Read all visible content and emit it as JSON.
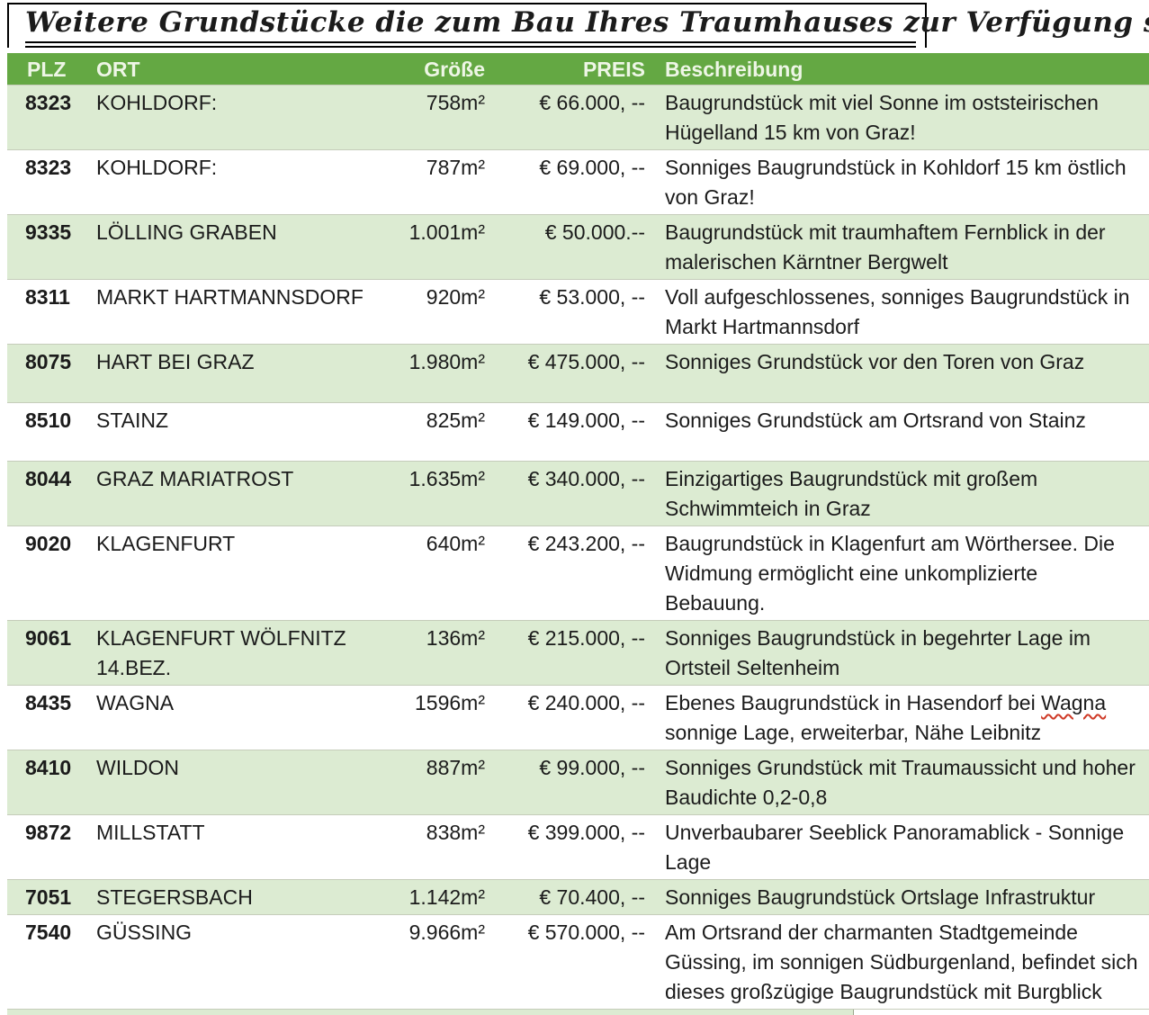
{
  "title": "Weitere Grundstücke die zum Bau Ihres Traumhauses zur Verfügung stehen",
  "colors": {
    "header_bg": "#64a843",
    "row_alt_bg": "#dcebd2",
    "header_text": "#eef6e6",
    "spellcheck_underline": "#cf3a27",
    "title_text": "#000000"
  },
  "table": {
    "headers": [
      "PLZ",
      "ORT",
      "Größe",
      "PREIS",
      "Beschreibung"
    ],
    "rows": [
      {
        "plz": "8323",
        "ort": "KOHLDORF:",
        "groesse": "758m²",
        "preis": "€ 66.000, --",
        "beschreibung": "Baugrundstück mit viel Sonne im oststeirischen Hügelland 15 km von Graz!"
      },
      {
        "plz": "8323",
        "ort": "KOHLDORF:",
        "groesse": "787m²",
        "preis": "€ 69.000, --",
        "beschreibung": "Sonniges Baugrundstück in Kohldorf 15 km östlich von Graz!"
      },
      {
        "plz": "9335",
        "ort": "LÖLLING GRABEN",
        "groesse": "1.001m²",
        "preis": "€ 50.000.--",
        "beschreibung": "Baugrundstück mit traumhaftem Fernblick in der malerischen Kärntner Bergwelt"
      },
      {
        "plz": "8311",
        "ort": "MARKT HARTMANNSDORF",
        "groesse": "920m²",
        "preis": "€ 53.000, --",
        "beschreibung": "Voll aufgeschlossenes, sonniges Baugrundstück in Markt Hartmannsdorf"
      },
      {
        "plz": "8075",
        "ort": "HART BEI GRAZ",
        "groesse": "1.980m²",
        "preis": "€ 475.000, --",
        "beschreibung": "Sonniges Grundstück vor den Toren von Graz"
      },
      {
        "plz": "8510",
        "ort": "STAINZ",
        "groesse": "825m²",
        "preis": "€ 149.000, --",
        "beschreibung": "Sonniges Grundstück am Ortsrand von Stainz"
      },
      {
        "plz": "8044",
        "ort": "GRAZ MARIATROST",
        "groesse": "1.635m²",
        "preis": "€ 340.000, --",
        "beschreibung": "Einzigartiges Baugrundstück mit großem Schwimmteich in Graz"
      },
      {
        "plz": "9020",
        "ort": "KLAGENFURT",
        "groesse": "640m²",
        "preis": "€ 243.200, --",
        "beschreibung": "Baugrundstück in Klagenfurt am Wörthersee. Die Widmung ermöglicht eine unkomplizierte Bebauung."
      },
      {
        "plz": "9061",
        "ort": "KLAGENFURT WÖLFNITZ 14.BEZ.",
        "groesse": "136m²",
        "preis": "€ 215.000, --",
        "beschreibung": "Sonniges Baugrundstück in begehrter Lage im Ortsteil Seltenheim"
      },
      {
        "plz": "8435",
        "ort": "WAGNA",
        "groesse": "1596m²",
        "preis": "€ 240.000, --",
        "beschreibung": "Ebenes Baugrundstück in Hasendorf bei Wagna sonnige Lage, erweiterbar, Nähe Leibnitz",
        "spellcheck_word": "Wagna"
      },
      {
        "plz": "8410",
        "ort": "WILDON",
        "groesse": "887m²",
        "preis": "€ 99.000, --",
        "beschreibung": "Sonniges Grundstück mit Traumaussicht und hoher Baudichte 0,2-0,8"
      },
      {
        "plz": "9872",
        "ort": "MILLSTATT",
        "groesse": "838m²",
        "preis": "€ 399.000, --",
        "beschreibung": "Unverbaubarer Seeblick Panoramablick - Sonnige Lage"
      },
      {
        "plz": "7051",
        "ort": "STEGERSBACH",
        "groesse": "1.142m²",
        "preis": "€ 70.400, --",
        "beschreibung": "Sonniges Baugrundstück Ortslage Infrastruktur",
        "compact": true
      },
      {
        "plz": "7540",
        "ort": "GÜSSING",
        "groesse": "9.966m²",
        "preis": "€ 570.000, --",
        "beschreibung": "Am Ortsrand der charmanten Stadtgemeinde Güssing, im sonnigen Südburgenland, befindet sich dieses großzügige Baugrundstück mit Burgblick"
      }
    ]
  }
}
